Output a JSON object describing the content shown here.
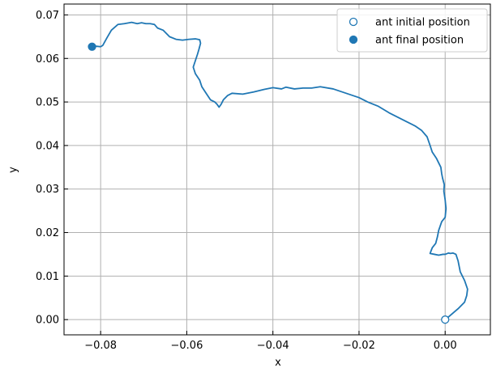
{
  "chart_data": {
    "type": "line",
    "title": "",
    "xlabel": "x",
    "ylabel": "y",
    "xlim": [
      -0.0885,
      0.0105
    ],
    "ylim": [
      -0.0035,
      0.0725
    ],
    "x_ticks": [
      -0.08,
      -0.06,
      -0.04,
      -0.02,
      0.0
    ],
    "x_tick_labels": [
      "−0.08",
      "−0.06",
      "−0.04",
      "−0.02",
      "0.00"
    ],
    "y_ticks": [
      0.0,
      0.01,
      0.02,
      0.03,
      0.04,
      0.05,
      0.06,
      0.07
    ],
    "y_tick_labels": [
      "0.00",
      "0.01",
      "0.02",
      "0.03",
      "0.04",
      "0.05",
      "0.06",
      "0.07"
    ],
    "grid": true,
    "legend_position": "top-right",
    "series": [
      {
        "color": "#1f77b4",
        "x": [
          0.0,
          0.001,
          0.003,
          0.0045,
          0.005,
          0.0052,
          0.0045,
          0.0035,
          0.003,
          0.0025,
          0.0018,
          0.0012,
          0.0008,
          0.0,
          -0.0005,
          -0.0015,
          -0.0025,
          -0.0035,
          -0.003,
          -0.0022,
          -0.0018,
          -0.0015,
          -0.0008,
          0.0,
          0.0002,
          0.0,
          -0.0003,
          -0.0002,
          -0.0006,
          -0.0008,
          -0.001,
          -0.0015,
          -0.002,
          -0.003,
          -0.0035,
          -0.0042,
          -0.0055,
          -0.007,
          -0.009,
          -0.011,
          -0.013,
          -0.0155,
          -0.018,
          -0.02,
          -0.023,
          -0.026,
          -0.029,
          -0.031,
          -0.033,
          -0.035,
          -0.037,
          -0.038,
          -0.04,
          -0.042,
          -0.0445,
          -0.047,
          -0.0495,
          -0.0505,
          -0.0515,
          -0.052,
          -0.0525,
          -0.053,
          -0.0535,
          -0.0545,
          -0.0555,
          -0.0565,
          -0.057,
          -0.058,
          -0.0585,
          -0.0575,
          -0.0572,
          -0.0568,
          -0.057,
          -0.058,
          -0.0595,
          -0.061,
          -0.0625,
          -0.064,
          -0.0655,
          -0.0668,
          -0.0675,
          -0.0685,
          -0.0695,
          -0.0705,
          -0.0715,
          -0.0728,
          -0.0745,
          -0.076,
          -0.0775,
          -0.0785,
          -0.0795,
          -0.08,
          -0.081,
          -0.0815,
          -0.082
        ],
        "y": [
          0.0,
          0.0008,
          0.0025,
          0.004,
          0.0055,
          0.007,
          0.009,
          0.011,
          0.0135,
          0.015,
          0.0153,
          0.0152,
          0.0153,
          0.015,
          0.015,
          0.0148,
          0.015,
          0.0152,
          0.0165,
          0.0175,
          0.019,
          0.0205,
          0.0225,
          0.0235,
          0.0255,
          0.0275,
          0.0295,
          0.031,
          0.0325,
          0.0335,
          0.035,
          0.036,
          0.037,
          0.0385,
          0.04,
          0.042,
          0.0435,
          0.0445,
          0.0455,
          0.0465,
          0.0475,
          0.049,
          0.05,
          0.051,
          0.052,
          0.053,
          0.0535,
          0.0532,
          0.0532,
          0.053,
          0.0534,
          0.053,
          0.0533,
          0.0529,
          0.0523,
          0.0518,
          0.052,
          0.0515,
          0.0505,
          0.0495,
          0.0488,
          0.0495,
          0.05,
          0.0505,
          0.052,
          0.0535,
          0.055,
          0.0565,
          0.058,
          0.061,
          0.062,
          0.0635,
          0.0643,
          0.0645,
          0.0644,
          0.0642,
          0.0644,
          0.065,
          0.0665,
          0.067,
          0.0678,
          0.068,
          0.068,
          0.0682,
          0.068,
          0.0683,
          0.068,
          0.0678,
          0.0665,
          0.0648,
          0.063,
          0.0627,
          0.0628,
          0.0627,
          0.0627
        ]
      }
    ],
    "points": [
      {
        "label": "ant initial position",
        "x": 0.0,
        "y": 0.0,
        "filled": false
      },
      {
        "label": "ant final position",
        "x": -0.082,
        "y": 0.0627,
        "filled": true
      }
    ]
  }
}
